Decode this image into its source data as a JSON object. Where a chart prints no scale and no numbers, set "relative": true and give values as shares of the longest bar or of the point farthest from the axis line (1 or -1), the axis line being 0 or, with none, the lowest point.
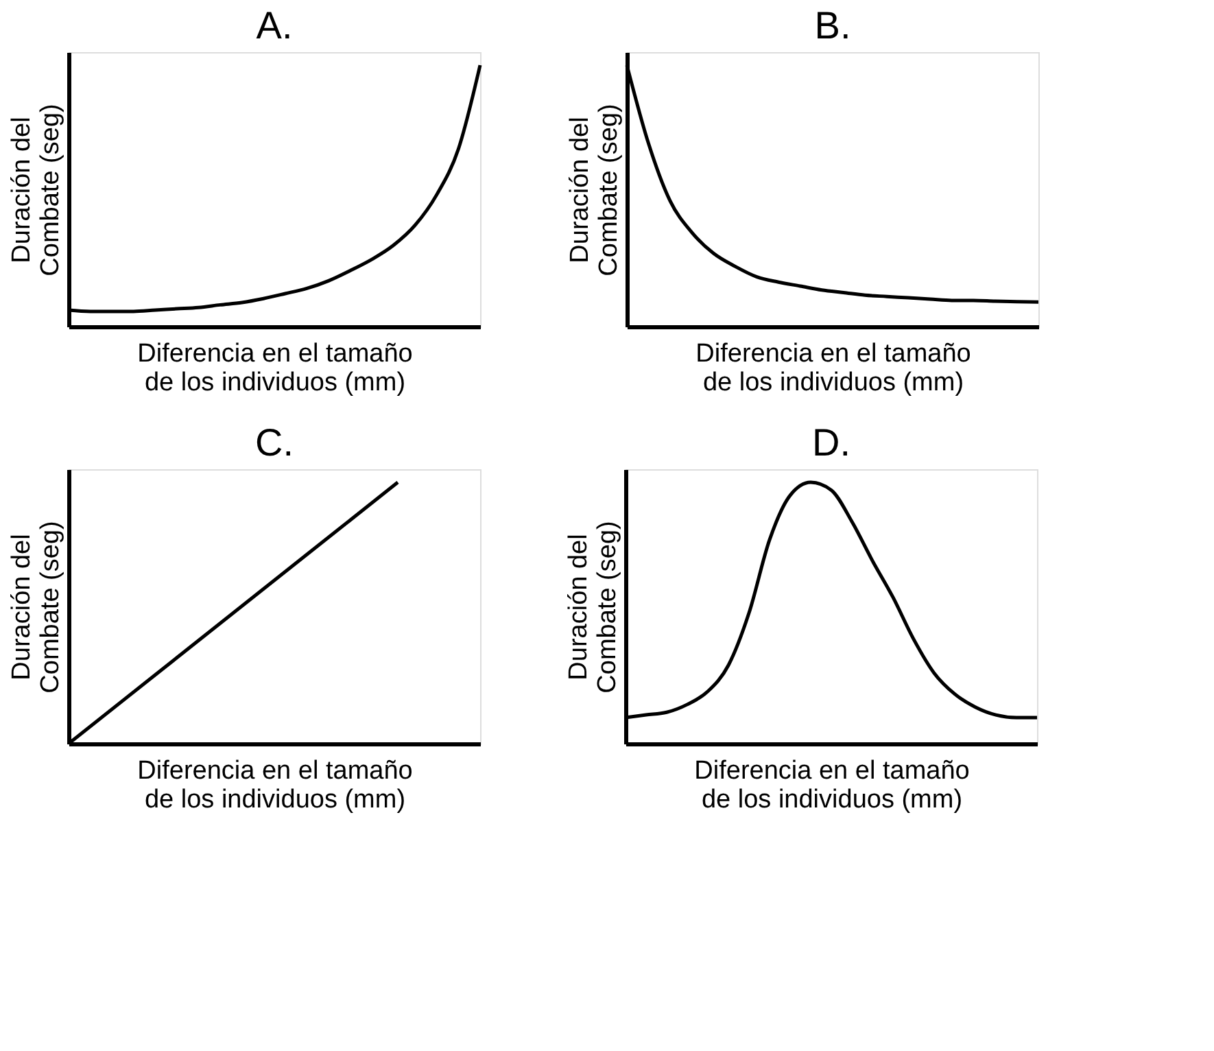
{
  "chart_data": [
    {
      "type": "line",
      "title": "A.",
      "xlabel": "Diferencia en el tamaño\nde los individuos (mm)",
      "ylabel": "Duración del\nCombate (seg)",
      "relative": true,
      "tick_labels": false,
      "grid": false,
      "categories": [
        null,
        null,
        null,
        null,
        null,
        null,
        null,
        null,
        null,
        null,
        null,
        null,
        null,
        null,
        null,
        null,
        null,
        null,
        null,
        null
      ],
      "series": [
        {
          "color": "#000000",
          "values": [
            0.063,
            0.058,
            0.058,
            0.058,
            0.063,
            0.068,
            0.073,
            0.083,
            0.092,
            0.107,
            0.126,
            0.146,
            0.175,
            0.214,
            0.257,
            0.311,
            0.388,
            0.505,
            0.68,
            1
          ]
        }
      ]
    },
    {
      "type": "line",
      "title": "B.",
      "xlabel": "Diferencia en el tamaño\nde los individuos (mm)",
      "ylabel": "Duración del\nCombate (seg)",
      "relative": true,
      "tick_labels": false,
      "grid": false,
      "categories": [
        null,
        null,
        null,
        null,
        null,
        null,
        null,
        null,
        null,
        null,
        null,
        null,
        null,
        null,
        null,
        null,
        null,
        null,
        null,
        null
      ],
      "series": [
        {
          "color": "#000000",
          "values": [
            1,
            0.7,
            0.48,
            0.36,
            0.28,
            0.23,
            0.19,
            0.17,
            0.155,
            0.14,
            0.13,
            0.12,
            0.115,
            0.11,
            0.105,
            0.1,
            0.1,
            0.097,
            0.095,
            0.094
          ]
        }
      ]
    },
    {
      "type": "line",
      "title": "C.",
      "xlabel": "Diferencia en el tamaño\nde los individuos (mm)",
      "ylabel": "Duración del\nCombate (seg)",
      "relative": true,
      "tick_labels": false,
      "grid": false,
      "categories": [
        null,
        null,
        null,
        null,
        null,
        null
      ],
      "series": [
        {
          "color": "#000000",
          "values": [
            0,
            0.25,
            0.5,
            0.75,
            1,
            null
          ]
        }
      ]
    },
    {
      "type": "line",
      "title": "D.",
      "xlabel": "Diferencia en el tamaño\nde los individuos (mm)",
      "ylabel": "Duración del\nCombate (seg)",
      "relative": true,
      "tick_labels": false,
      "grid": false,
      "categories": [
        null,
        null,
        null,
        null,
        null,
        null,
        null,
        null,
        null,
        null,
        null,
        null,
        null,
        null,
        null,
        null,
        null,
        null,
        null,
        null,
        null
      ],
      "series": [
        {
          "color": "#000000",
          "values": [
            0.1,
            0.11,
            0.12,
            0.15,
            0.2,
            0.3,
            0.5,
            0.78,
            0.95,
            1,
            0.97,
            0.85,
            0.7,
            0.56,
            0.4,
            0.27,
            0.19,
            0.14,
            0.11,
            0.1,
            0.1
          ]
        }
      ]
    }
  ]
}
